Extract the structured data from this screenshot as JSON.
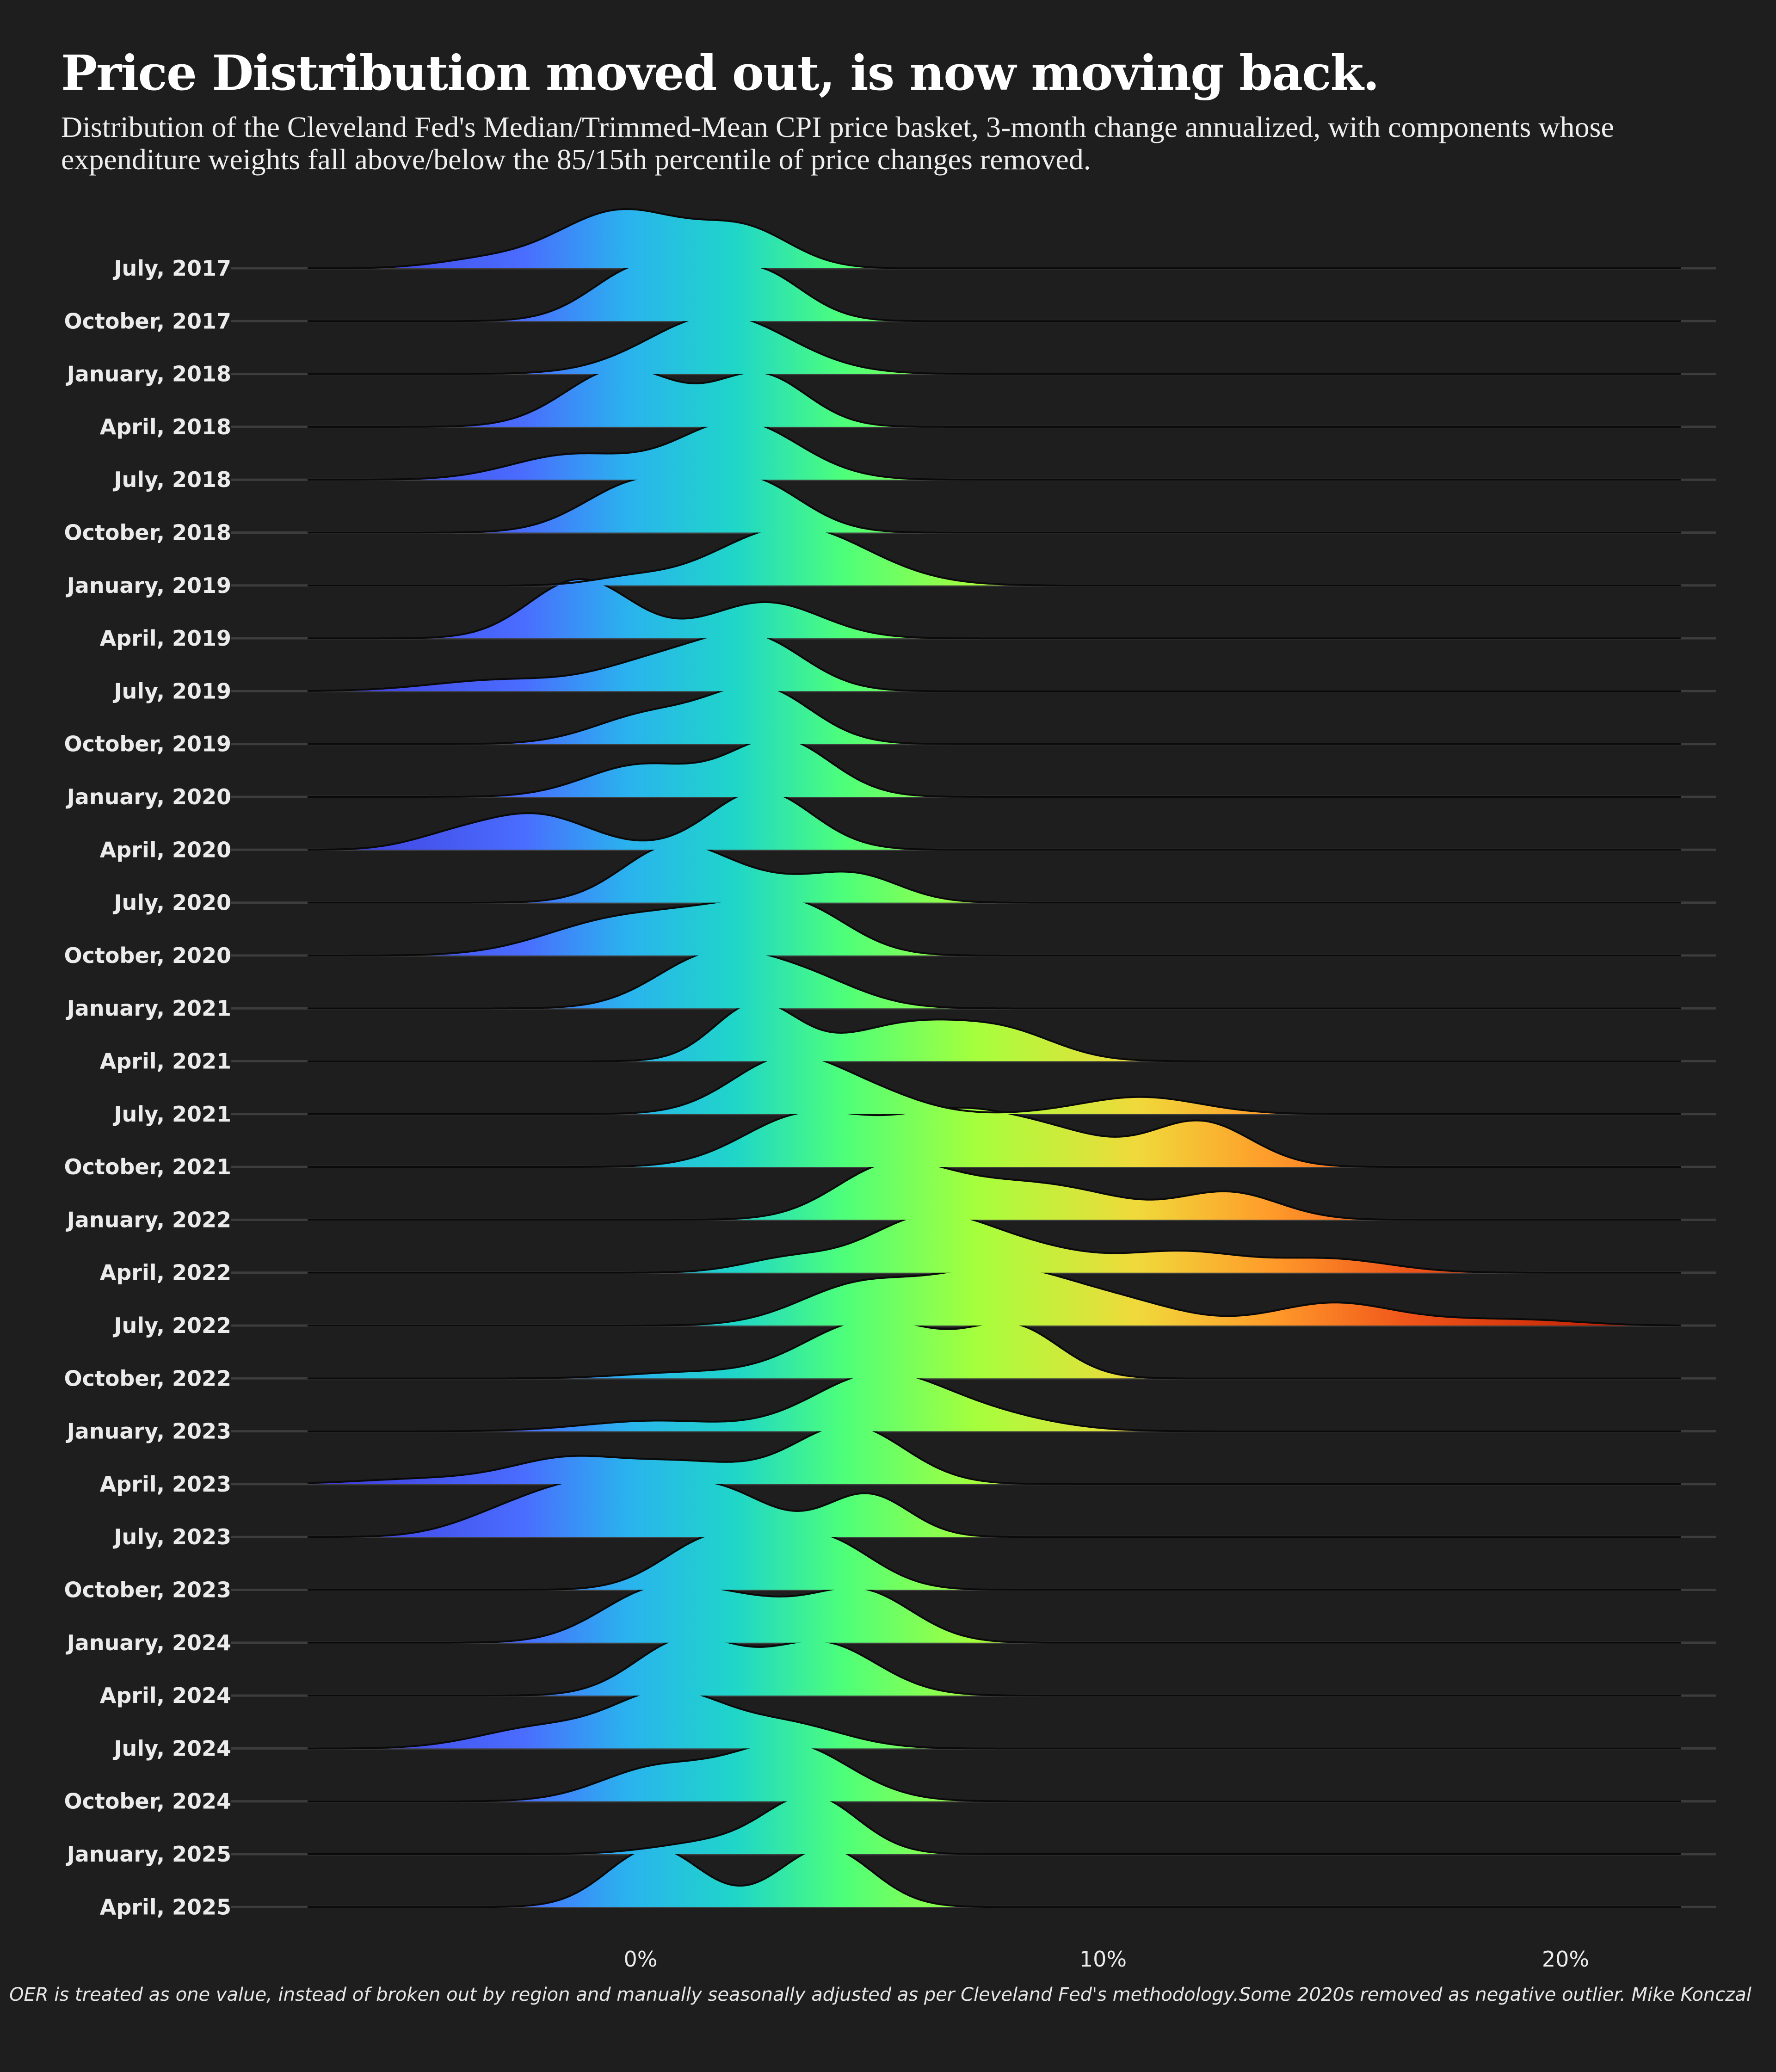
{
  "title": "Price Distribution moved out, is now moving back.",
  "subtitle": "Distribution of the Cleveland Fed's Median/Trimmed-Mean CPI price basket, 3-month change annualized, with components whose expenditure weights fall above/below the 85/15th percentile of price changes removed.",
  "footnote": "OER is treated as one value, instead of broken out by region and manually seasonally adjusted as per Cleveland Fed's methodology.Some 2020s removed as negative outlier. Mike Konczal",
  "colors": {
    "background": "#1e1e1e",
    "low": "#4a6cff",
    "mid": "#1fd6c8",
    "high": "#a6ff3c",
    "extreme": "#c81e00"
  },
  "chart_data": {
    "type": "ridgeline",
    "x_ticks": [
      "0%",
      "10%",
      "20%"
    ],
    "x_tick_values": [
      0,
      10,
      20
    ],
    "xlim": [
      -7.2,
      22.5
    ],
    "grid": true,
    "series": [
      {
        "name": "July, 2017",
        "peaks": [
          [
            -0.4,
            1.4,
            1.0
          ],
          [
            2.3,
            1.0,
            0.6
          ],
          [
            -3.5,
            1.0,
            0.12
          ]
        ]
      },
      {
        "name": "October, 2017",
        "peaks": [
          [
            0.1,
            1.1,
            0.95
          ],
          [
            2.5,
            1.0,
            0.85
          ]
        ]
      },
      {
        "name": "January, 2018",
        "peaks": [
          [
            1.7,
            1.5,
            1.0
          ]
        ]
      },
      {
        "name": "April, 2018",
        "peaks": [
          [
            -0.4,
            1.2,
            0.85
          ],
          [
            2.6,
            1.0,
            0.75
          ]
        ]
      },
      {
        "name": "July, 2018",
        "peaks": [
          [
            -1.5,
            1.3,
            0.4
          ],
          [
            2.1,
            1.3,
            0.95
          ]
        ]
      },
      {
        "name": "October, 2018",
        "peaks": [
          [
            0.0,
            1.2,
            0.8
          ],
          [
            2.4,
            1.1,
            0.8
          ]
        ]
      },
      {
        "name": "January, 2019",
        "peaks": [
          [
            3.3,
            1.6,
            1.0
          ],
          [
            -0.3,
            0.8,
            0.1
          ]
        ]
      },
      {
        "name": "April, 2019",
        "peaks": [
          [
            -1.3,
            1.1,
            0.9
          ],
          [
            2.7,
            1.2,
            0.55
          ]
        ]
      },
      {
        "name": "July, 2019",
        "peaks": [
          [
            -3.0,
            1.5,
            0.2
          ],
          [
            0.5,
            1.3,
            0.55
          ],
          [
            2.5,
            1.1,
            0.85
          ]
        ]
      },
      {
        "name": "October, 2019",
        "peaks": [
          [
            0.2,
            1.2,
            0.5
          ],
          [
            2.6,
            1.1,
            0.95
          ]
        ]
      },
      {
        "name": "January, 2020",
        "peaks": [
          [
            0.0,
            1.2,
            0.55
          ],
          [
            3.0,
            1.1,
            1.0
          ]
        ]
      },
      {
        "name": "April, 2020",
        "peaks": [
          [
            -2.3,
            1.2,
            0.55
          ],
          [
            2.6,
            1.1,
            0.92
          ],
          [
            -4.2,
            0.9,
            0.15
          ]
        ]
      },
      {
        "name": "July, 2020",
        "peaks": [
          [
            0.7,
            1.1,
            1.0
          ],
          [
            4.6,
            1.0,
            0.5
          ],
          [
            2.6,
            1.0,
            0.3
          ]
        ]
      },
      {
        "name": "October, 2020",
        "peaks": [
          [
            -0.6,
            1.5,
            0.55
          ],
          [
            1.8,
            1.3,
            0.55
          ],
          [
            3.5,
            1.1,
            0.65
          ]
        ]
      },
      {
        "name": "January, 2021",
        "peaks": [
          [
            1.5,
            1.2,
            1.0
          ],
          [
            3.5,
            1.2,
            0.6
          ]
        ]
      },
      {
        "name": "April, 2021",
        "peaks": [
          [
            2.5,
            0.9,
            0.85
          ],
          [
            5.8,
            1.4,
            0.55
          ],
          [
            8.0,
            1.1,
            0.35
          ]
        ]
      },
      {
        "name": "July, 2021",
        "peaks": [
          [
            3.2,
            1.2,
            1.0
          ],
          [
            5.2,
            1.0,
            0.25
          ],
          [
            10.8,
            1.3,
            0.3
          ]
        ]
      },
      {
        "name": "October, 2021",
        "peaks": [
          [
            3.5,
            1.3,
            0.55
          ],
          [
            6.8,
            1.5,
            0.6
          ],
          [
            12.1,
            1.1,
            0.5
          ],
          [
            9.2,
            1.2,
            0.25
          ]
        ]
      },
      {
        "name": "January, 2022",
        "peaks": [
          [
            5.4,
            1.2,
            0.85
          ],
          [
            7.9,
            1.4,
            0.5
          ],
          [
            9.8,
            1.2,
            0.25
          ],
          [
            12.7,
            1.1,
            0.45
          ]
        ]
      },
      {
        "name": "April, 2022",
        "peaks": [
          [
            3.2,
            1.0,
            0.2
          ],
          [
            6.2,
            1.3,
            0.8
          ],
          [
            8.5,
            1.3,
            0.3
          ],
          [
            11.7,
            1.3,
            0.3
          ],
          [
            14.9,
            1.3,
            0.2
          ]
        ]
      },
      {
        "name": "July, 2022",
        "peaks": [
          [
            4.7,
            1.3,
            0.5
          ],
          [
            7.8,
            1.5,
            0.72
          ],
          [
            10.5,
            1.3,
            0.25
          ],
          [
            15.0,
            1.3,
            0.3
          ],
          [
            19.2,
            1.2,
            0.07
          ],
          [
            17.5,
            1.0,
            0.04
          ]
        ]
      },
      {
        "name": "October, 2022",
        "peaks": [
          [
            1.0,
            1.3,
            0.08
          ],
          [
            4.6,
            1.3,
            0.6
          ],
          [
            6.0,
            1.2,
            0.3
          ],
          [
            8.1,
            1.0,
            0.65
          ]
        ]
      },
      {
        "name": "January, 2023",
        "peaks": [
          [
            0.3,
            1.5,
            0.18
          ],
          [
            5.1,
            1.4,
            0.95
          ],
          [
            7.5,
            1.4,
            0.25
          ]
        ]
      },
      {
        "name": "April, 2023",
        "peaks": [
          [
            -1.6,
            1.2,
            0.35
          ],
          [
            -4.5,
            1.5,
            0.08
          ],
          [
            1.0,
            1.3,
            0.3
          ],
          [
            4.5,
            1.2,
            0.85
          ]
        ]
      },
      {
        "name": "July, 2023",
        "peaks": [
          [
            -1.0,
            1.3,
            0.6
          ],
          [
            1.6,
            1.2,
            0.55
          ],
          [
            4.9,
            0.9,
            0.5
          ],
          [
            -3.0,
            1.1,
            0.2
          ]
        ]
      },
      {
        "name": "October, 2023",
        "peaks": [
          [
            1.6,
            1.1,
            0.85
          ],
          [
            3.9,
            1.1,
            0.85
          ]
        ]
      },
      {
        "name": "January, 2024",
        "peaks": [
          [
            0.3,
            1.2,
            0.75
          ],
          [
            2.4,
            1.2,
            0.5
          ],
          [
            4.8,
            1.1,
            0.75
          ]
        ]
      },
      {
        "name": "April, 2024",
        "peaks": [
          [
            1.0,
            1.1,
            0.85
          ],
          [
            3.9,
            1.2,
            0.8
          ]
        ]
      },
      {
        "name": "July, 2024",
        "peaks": [
          [
            -2.2,
            1.3,
            0.35
          ],
          [
            0.6,
            1.2,
            0.95
          ],
          [
            3.2,
            1.2,
            0.4
          ]
        ]
      },
      {
        "name": "October, 2024",
        "peaks": [
          [
            0.3,
            1.2,
            0.5
          ],
          [
            3.2,
            1.3,
            0.9
          ]
        ]
      },
      {
        "name": "January, 2025",
        "peaks": [
          [
            3.7,
            1.0,
            1.0
          ],
          [
            1.5,
            1.2,
            0.2
          ]
        ]
      },
      {
        "name": "April, 2025",
        "peaks": [
          [
            0.3,
            1.0,
            0.9
          ],
          [
            4.0,
            1.0,
            0.9
          ]
        ]
      }
    ]
  }
}
